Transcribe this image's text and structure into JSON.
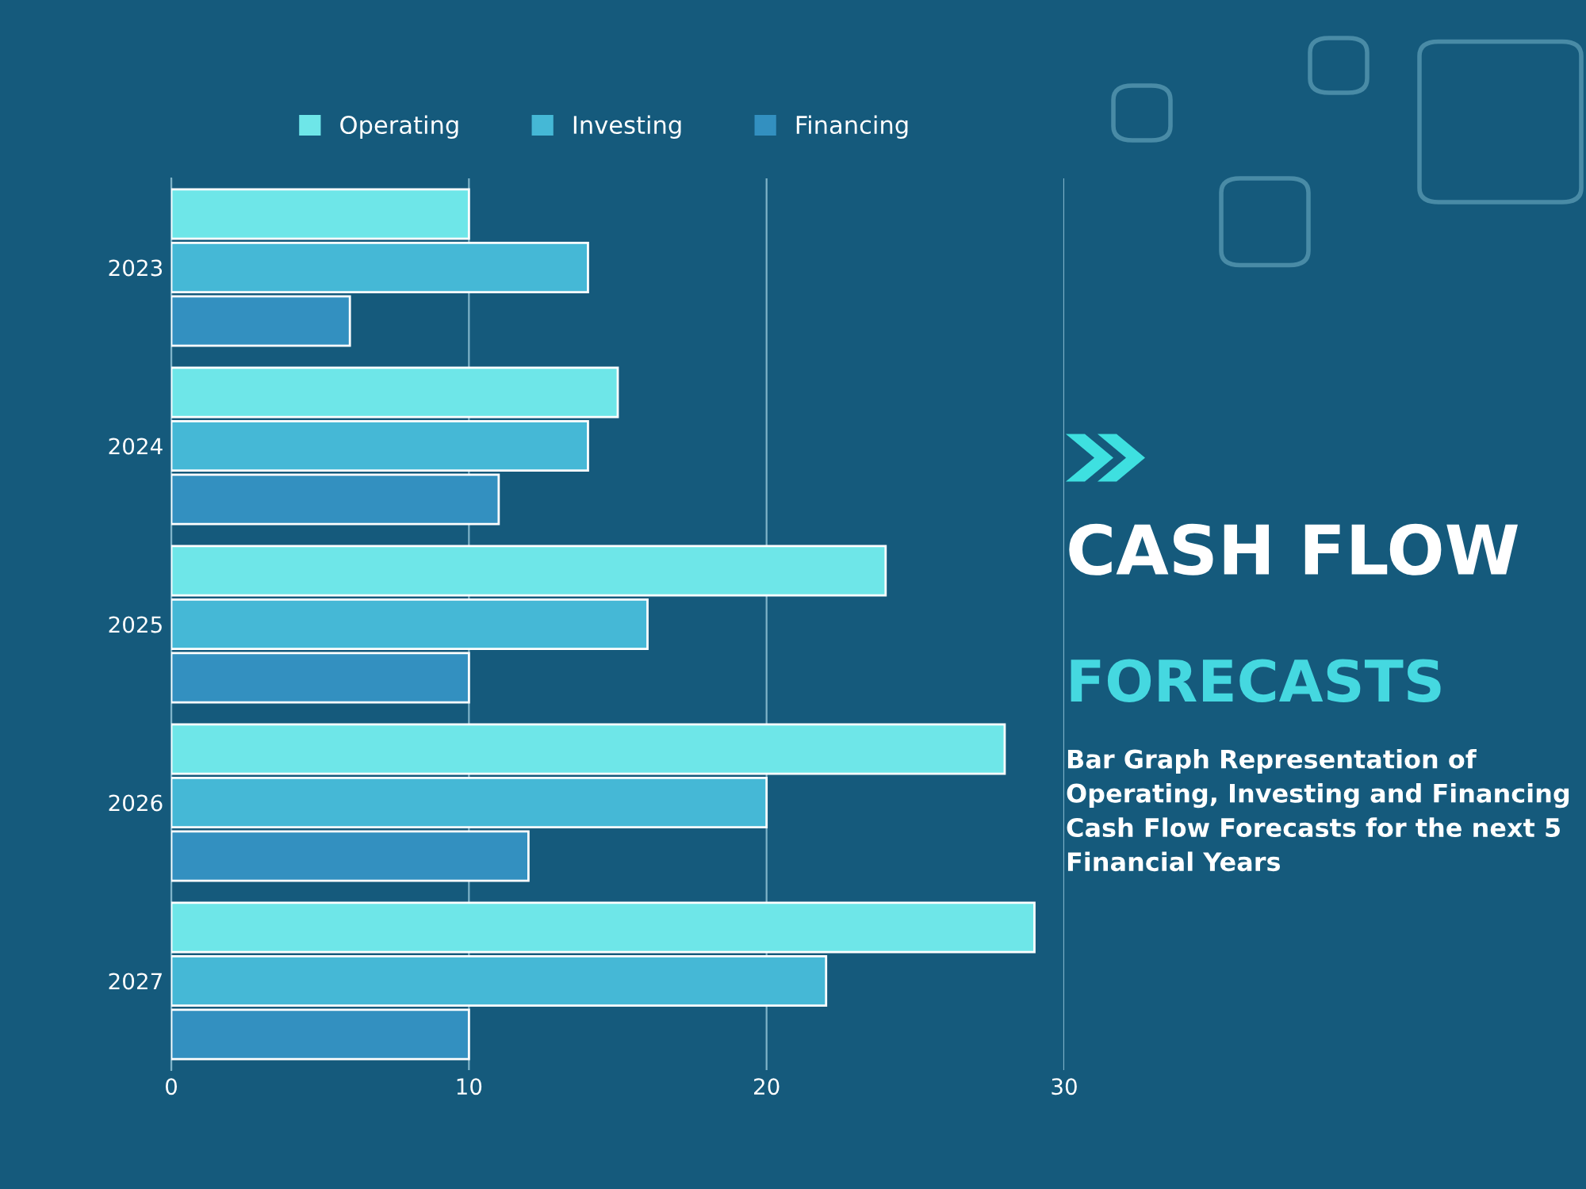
{
  "chart_data": {
    "type": "bar",
    "orientation": "horizontal",
    "title": "CASH FLOW",
    "subtitle": "FORECASTS",
    "annotations": [
      "Bar Graph Representation of Operating, Investing and Financing Cash Flow Forecasts for the next 5 Financial Years"
    ],
    "categories": [
      "2023",
      "2024",
      "2025",
      "2026",
      "2027"
    ],
    "series": [
      {
        "name": "Operating",
        "color": "#6ee6e8",
        "values": [
          10,
          15,
          24,
          28,
          29
        ]
      },
      {
        "name": "Investing",
        "color": "#45b8d6",
        "values": [
          14,
          14,
          16,
          20,
          22
        ]
      },
      {
        "name": "Financing",
        "color": "#3390c0",
        "values": [
          6,
          11,
          10,
          12,
          10
        ]
      }
    ],
    "xlim": [
      0,
      30
    ],
    "xticks": [
      0,
      10,
      20,
      30
    ],
    "grid": "x",
    "legend": "top"
  }
}
